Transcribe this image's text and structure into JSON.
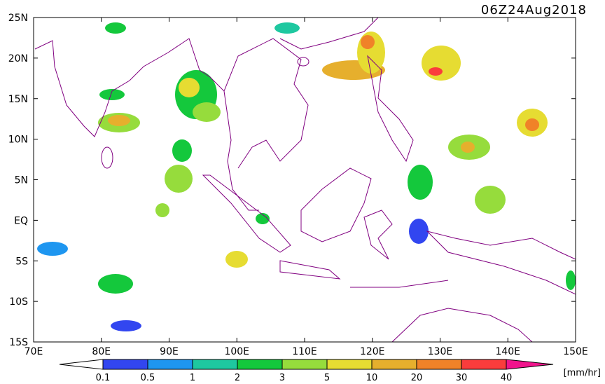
{
  "header": {
    "title": "06Z24Aug2018"
  },
  "map": {
    "lat_labels": [
      "25N",
      "20N",
      "15N",
      "10N",
      "5N",
      "EQ",
      "5S",
      "10S",
      "15S"
    ],
    "lon_labels": [
      "70E",
      "80E",
      "90E",
      "100E",
      "110E",
      "120E",
      "130E",
      "140E",
      "150E"
    ]
  },
  "colorbar": {
    "labels": [
      "0.1",
      "0.5",
      "1",
      "2",
      "3",
      "5",
      "10",
      "20",
      "30",
      "40"
    ],
    "colors": [
      "#ffffff",
      "#3246f0",
      "#1e96f0",
      "#1ec8a0",
      "#14c83c",
      "#96dc3c",
      "#e6dc32",
      "#e6af2d",
      "#f08228",
      "#fa3c3c",
      "#f0148c"
    ],
    "unit": "[mm/hr]"
  }
}
